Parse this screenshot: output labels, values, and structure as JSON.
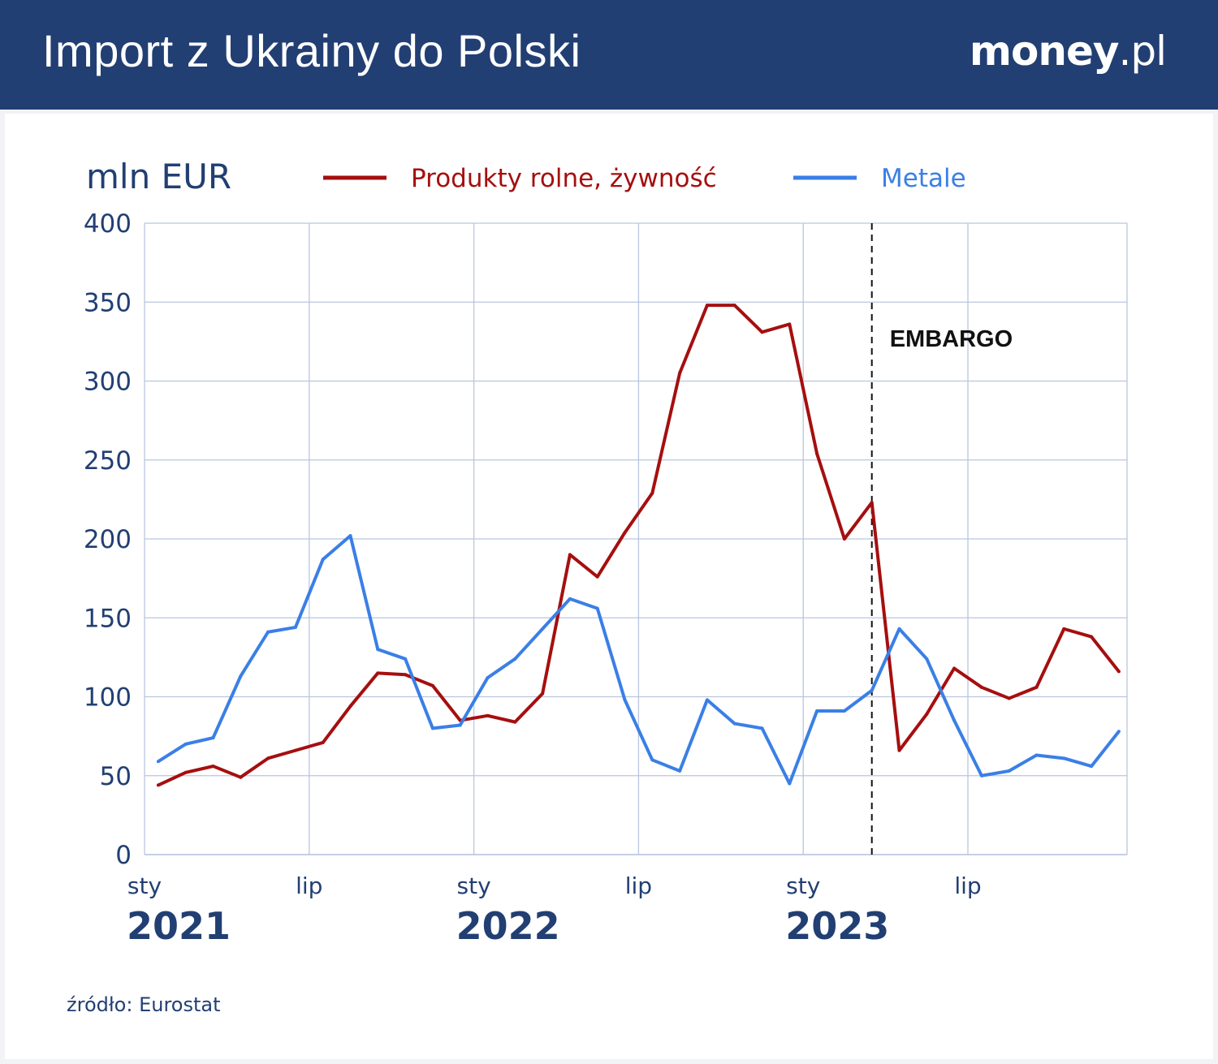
{
  "header": {
    "title": "Import z Ukrainy do Polski",
    "logo": "money.pl"
  },
  "source": "źródło: Eurostat",
  "colors": {
    "header": "#223f73",
    "agri": "#a50f0f",
    "metals": "#3a7fe6",
    "text": "#223f73",
    "grid": "#b9c6df"
  },
  "chart_data": {
    "type": "line",
    "ylabel": "mln EUR",
    "ylim": [
      0,
      400
    ],
    "yticks": [
      0,
      50,
      100,
      150,
      200,
      250,
      300,
      350,
      400
    ],
    "x": [
      "2021-01",
      "2021-02",
      "2021-03",
      "2021-04",
      "2021-05",
      "2021-06",
      "2021-07",
      "2021-08",
      "2021-09",
      "2021-10",
      "2021-11",
      "2021-12",
      "2022-01",
      "2022-02",
      "2022-03",
      "2022-04",
      "2022-05",
      "2022-06",
      "2022-07",
      "2022-08",
      "2022-09",
      "2022-10",
      "2022-11",
      "2022-12",
      "2023-01",
      "2023-02",
      "2023-03",
      "2023-04",
      "2023-05",
      "2023-06",
      "2023-07",
      "2023-08",
      "2023-09",
      "2023-10",
      "2023-11",
      "2023-12"
    ],
    "xticks": [
      {
        "month": 0,
        "label": "sty",
        "year": "2021"
      },
      {
        "month": 6,
        "label": "lip",
        "year": ""
      },
      {
        "month": 12,
        "label": "sty",
        "year": "2022"
      },
      {
        "month": 18,
        "label": "lip",
        "year": ""
      },
      {
        "month": 24,
        "label": "sty",
        "year": "2023"
      },
      {
        "month": 30,
        "label": "lip",
        "year": ""
      }
    ],
    "grid": true,
    "legend_placement": "top",
    "series": [
      {
        "name": "Produkty rolne, żywność",
        "color": "#a50f0f",
        "values": [
          44,
          52,
          56,
          49,
          61,
          66,
          71,
          94,
          115,
          114,
          107,
          85,
          88,
          84,
          102,
          190,
          176,
          204,
          229,
          305,
          348,
          348,
          331,
          336,
          254,
          200,
          223,
          66,
          89,
          118,
          106,
          99,
          106,
          143,
          138,
          116
        ]
      },
      {
        "name": "Metale",
        "color": "#3a7fe6",
        "values": [
          59,
          70,
          74,
          113,
          141,
          144,
          187,
          202,
          130,
          124,
          80,
          82,
          112,
          124,
          143,
          162,
          156,
          98,
          60,
          53,
          98,
          83,
          80,
          45,
          91,
          91,
          104,
          143,
          124,
          85,
          50,
          53,
          63,
          61,
          56,
          78
        ]
      }
    ],
    "annotations": [
      {
        "text": "EMBARGO",
        "x": "2023-03",
        "style": "dashed-vertical-line"
      }
    ]
  }
}
